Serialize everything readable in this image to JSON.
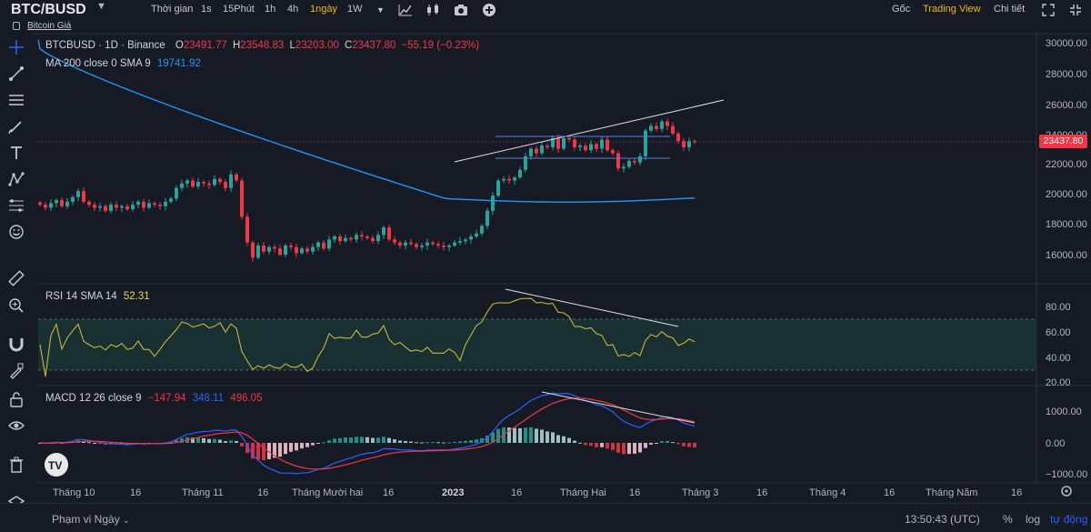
{
  "header": {
    "symbol": "BTC/BUSD",
    "subtitle": "Bitcoin Giá",
    "time_label": "Thời gian",
    "intervals": [
      "1s",
      "15Phút",
      "1h",
      "4h",
      "1ngày",
      "1W"
    ],
    "active_interval": "1ngày",
    "right_tabs": [
      "Gốc",
      "Trading View",
      "Chi tiết"
    ],
    "active_right_tab": "Trading View"
  },
  "legend": {
    "main": "BTCBUSD · 1D · Binance",
    "open_label": "O",
    "open": "23491.77",
    "high_label": "H",
    "high": "23548.83",
    "low_label": "L",
    "low": "23203.00",
    "close_label": "C",
    "close": "23437.80",
    "change": "−55.19 (−0.23%)",
    "ma_label": "MA 200 close 0 SMA 9",
    "ma_value": "19741.92",
    "rsi_label": "RSI 14 SMA 14",
    "rsi_value": "52.31",
    "macd_label": "MACD 12 26 close 9",
    "macd_v1": "−147.94",
    "macd_v2": "348.11",
    "macd_v3": "496.05"
  },
  "price_axis": [
    "30000.00",
    "28000.00",
    "26000.00",
    "24000.00",
    "22000.00",
    "20000.00",
    "18000.00",
    "16000.00"
  ],
  "current_price": "23437.80",
  "rsi_axis": [
    "80.00",
    "60.00",
    "40.00",
    "20.00"
  ],
  "macd_axis": [
    "1000.00",
    "0.00",
    "−1000.00"
  ],
  "time_axis": [
    "Tháng 10",
    "16",
    "Tháng 11",
    "16",
    "Tháng Mười hai",
    "16",
    "2023",
    "16",
    "Tháng Hai",
    "16",
    "Tháng 3",
    "16",
    "Tháng 4",
    "16",
    "Tháng Năm",
    "16"
  ],
  "bottom": {
    "range_label": "Phạm vi Ngày",
    "clock": "13:50:43 (UTC)",
    "percent": "%",
    "log": "log",
    "auto": "tự động"
  },
  "colors": {
    "up": "#26a69a",
    "down": "#f23645",
    "ma": "#2196f3",
    "rsi": "#c8b53a",
    "macd": "#2962ff",
    "signal": "#f23645",
    "accent": "#f0b90b"
  },
  "icons": [
    "crosshair-icon",
    "trend-line-icon",
    "horizontal-lines-icon",
    "brush-icon",
    "text-icon",
    "pattern-icon",
    "fib-icon",
    "emoji-icon",
    "ruler-icon",
    "zoom-icon",
    "magnet-icon",
    "lock-draw-icon",
    "lock-icon",
    "eye-icon",
    "trash-icon",
    "layers-icon"
  ],
  "chart_data": {
    "type": "candlestick",
    "ohlc_last": {
      "open": 23491.77,
      "high": 23548.83,
      "low": 23203.0,
      "close": 23437.8
    },
    "ylim": [
      15000,
      30500
    ],
    "ma200_last": 19741.92,
    "closes_approx": [
      19300,
      19100,
      19400,
      19600,
      19200,
      19500,
      19800,
      20200,
      19500,
      19300,
      19100,
      19200,
      18900,
      19300,
      19100,
      19200,
      19000,
      19300,
      19500,
      19100,
      19400,
      19300,
      19200,
      19500,
      19700,
      20400,
      20700,
      20900,
      20500,
      20800,
      20700,
      20600,
      21000,
      20800,
      20400,
      21300,
      20900,
      18500,
      16800,
      15800,
      16600,
      16200,
      16500,
      16400,
      16000,
      16600,
      16500,
      16100,
      16400,
      16200,
      16500,
      16800,
      16400,
      17000,
      17200,
      16900,
      17100,
      17000,
      17300,
      17200,
      17100,
      16900,
      17300,
      17800,
      17000,
      16800,
      16600,
      16800,
      16700,
      16500,
      16600,
      16800,
      16700,
      16600,
      16500,
      16600,
      16800,
      16900,
      17000,
      17200,
      17400,
      17900,
      18900,
      19900,
      20900,
      21000,
      20900,
      21100,
      21600,
      22500,
      23000,
      22700,
      23200,
      23100,
      23700,
      23000,
      23700,
      23600,
      23100,
      23200,
      22900,
      23300,
      23000,
      23600,
      22900,
      22700,
      21700,
      21800,
      22200,
      22100,
      22500,
      24200,
      24500,
      24300,
      24800,
      24500,
      24000,
      23500,
      23100,
      23500,
      23437.8
    ],
    "rsi_last": 52.31,
    "macd": {
      "macd": -147.94,
      "signal": 348.11,
      "hist": 496.05
    }
  }
}
